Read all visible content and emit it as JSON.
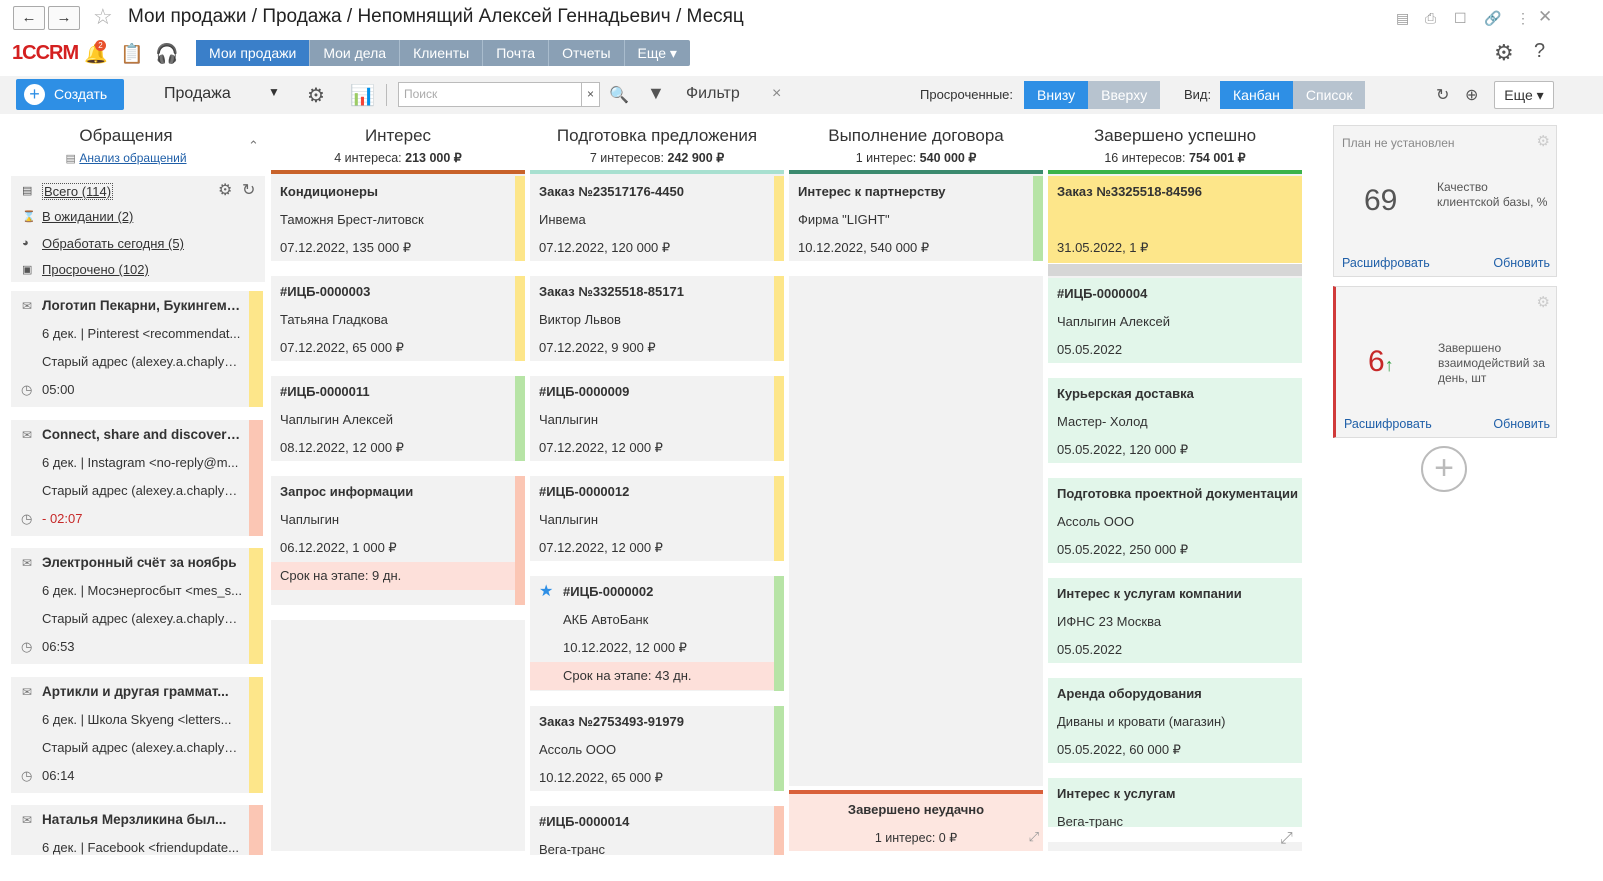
{
  "window": {
    "title": "Мои продажи / Продажа / Непомнящий Алексей Геннадьевич / Месяц"
  },
  "logo": "1ССRМ",
  "notifications_badge": "2",
  "menu": {
    "tabs": [
      "Мои продажи",
      "Мои дела",
      "Клиенты",
      "Почта",
      "Отчеты",
      "Еще ▾"
    ],
    "active": 0
  },
  "toolbar": {
    "create_label": "Создать",
    "sales_select": "Продажа",
    "search_placeholder": "Поиск",
    "filter_label": "Фильтр",
    "overdue_label": "Просроченные:",
    "overdue_options": [
      "Внизу",
      "Вверху"
    ],
    "view_label": "Вид:",
    "view_options": [
      "Канбан",
      "Список"
    ],
    "more_label": "Еще ▾"
  },
  "sidebar": {
    "title": "Обращения",
    "analysis_link": "Анализ обращений",
    "filters": [
      {
        "label": "Всего (114)",
        "icon": "inbox-icon"
      },
      {
        "label": "В ожидании (2)",
        "icon": "hourglass-icon"
      },
      {
        "label": "Обработать сегодня (5)",
        "icon": "pie-icon"
      },
      {
        "label": "Просрочено (102)",
        "icon": "warning-icon"
      }
    ],
    "appeals": [
      {
        "title": "Логотип Пекарни, Букингемс...",
        "from": "6 дек. | Pinterest <recommendat...",
        "address": "Старый адрес (alexey.a.chaplyg...",
        "time": "05:00",
        "color": "#fde68a"
      },
      {
        "title": "Connect, share and discover: ...",
        "from": "6 дек. | Instagram <no-reply@m...",
        "address": "Старый адрес (alexey.a.chaplyg...",
        "time": "- 02:07",
        "color": "#fbc6b4"
      },
      {
        "title": "Электронный счёт за ноябрь",
        "from": "6 дек. | Мосэнергосбыт <mes_s...",
        "address": "Старый адрес (alexey.a.chaplyg...",
        "time": "06:53",
        "color": "#fde68a"
      },
      {
        "title": "Артикли и другая граммат...",
        "from": "6 дек. | Школа Skyeng <letters...",
        "address": "Старый адрес (alexey.a.chaplyg...",
        "time": "06:14",
        "color": "#fde68a"
      },
      {
        "title": "Наталья Мерзликина был...",
        "from": "6 дек. | Facebook <friendupdate...",
        "address": "",
        "time": "",
        "color": "#fbc6b4"
      }
    ]
  },
  "columns": [
    {
      "title": "Интерес",
      "count": "4 интереса:",
      "sum": "213 000 ₽",
      "color": "#c8622a",
      "cards": [
        {
          "title": "Кондиционеры",
          "client": "Таможня Брест-литовск",
          "info": "07.12.2022, 135 000 ₽",
          "stripe": "#fde68a",
          "stage": ""
        },
        {
          "title": "#ИЦБ-0000003",
          "client": "Татьяна Гладкова",
          "info": "07.12.2022, 65 000 ₽",
          "stripe": "#fde68a",
          "stage": ""
        },
        {
          "title": "#ИЦБ-0000011",
          "client": "Чаплыгин Алексей",
          "info": "08.12.2022, 12 000 ₽",
          "stripe": "#b7e4a6",
          "stage": ""
        },
        {
          "title": "Запрос информации",
          "client": "Чаплыгин",
          "info": "06.12.2022, 1 000 ₽",
          "stripe": "#fbc6b4",
          "stage": "Срок на этапе: 9 дн."
        }
      ]
    },
    {
      "title": "Подготовка предложения",
      "count": "7 интересов:",
      "sum": "242 900 ₽",
      "color": "#a8e0d0",
      "cards": [
        {
          "title": "Заказ №23517176-4450",
          "client": "Инвема",
          "info": "07.12.2022, 120 000 ₽",
          "stripe": "#fde68a",
          "stage": ""
        },
        {
          "title": "Заказ №3325518-85171",
          "client": "Виктор Львов",
          "info": "07.12.2022, 9 900 ₽",
          "stripe": "#fde68a",
          "stage": ""
        },
        {
          "title": "#ИЦБ-0000009",
          "client": "Чаплыгин",
          "info": "07.12.2022, 12 000 ₽",
          "stripe": "#fde68a",
          "stage": ""
        },
        {
          "title": "#ИЦБ-0000012",
          "client": "Чаплыгин",
          "info": "07.12.2022, 12 000 ₽",
          "stripe": "#fde68a",
          "stage": ""
        },
        {
          "title": "#ИЦБ-0000002",
          "client": "АКБ АвтоБанк",
          "info": "10.12.2022, 12 000 ₽",
          "stripe": "#b7e4a6",
          "stage": "Срок на этапе: 43 дн.",
          "star": true
        },
        {
          "title": "Заказ №2753493-91979",
          "client": "Ассоль ООО",
          "info": "10.12.2022, 65 000 ₽",
          "stripe": "#b7e4a6",
          "stage": ""
        },
        {
          "title": "#ИЦБ-0000014",
          "client": "Вега-транс",
          "info": "",
          "stripe": "#fbc6b4",
          "stage": ""
        }
      ]
    },
    {
      "title": "Выполнение договора",
      "count": "1 интерес:",
      "sum": "540 000 ₽",
      "color": "#3b8a6e",
      "cards": [
        {
          "title": "Интерес к партнерству",
          "client": "Фирма \"LIGHT\"",
          "info": "10.12.2022, 540 000 ₽",
          "stripe": "#b7e4a6",
          "stage": ""
        }
      ]
    },
    {
      "title": "Завершено успешно",
      "count": "16 интересов:",
      "sum": "754 001 ₽",
      "color": "#3bb34a",
      "cards": [
        {
          "title": "Заказ №3325518-84596",
          "client": "",
          "info": "31.05.2022, 1 ₽",
          "stripe": "",
          "stage": ""
        },
        {
          "title": "#ИЦБ-0000004",
          "client": "Чаплыгин Алексей",
          "info": "05.05.2022",
          "stripe": "",
          "stage": ""
        },
        {
          "title": "Курьерская доставка",
          "client": "Мастер- Холод",
          "info": "05.05.2022, 120 000 ₽",
          "stripe": "",
          "stage": ""
        },
        {
          "title": "Подготовка проектной документации",
          "client": "Ассоль ООО",
          "info": "05.05.2022, 250 000 ₽",
          "stripe": "",
          "stage": ""
        },
        {
          "title": "Интерес к услугам компании",
          "client": "ИФНС 23 Москва",
          "info": "05.05.2022",
          "stripe": "",
          "stage": ""
        },
        {
          "title": "Аренда оборудования",
          "client": "Диваны и кровати (магазин)",
          "info": "05.05.2022, 60 000 ₽",
          "stripe": "",
          "stage": ""
        },
        {
          "title": "Интерес к услугам",
          "client": "Вега-транс",
          "info": "",
          "stripe": "",
          "stage": ""
        }
      ]
    }
  ],
  "failed": {
    "title": "Завершено неудачно",
    "count": "1 интерес: 0 ₽"
  },
  "widgets": [
    {
      "header": "План не установлен",
      "value": "69",
      "desc": "Качество клиентской базы, %",
      "link1": "Расшифровать",
      "link2": "Обновить"
    },
    {
      "header": "",
      "value": "6",
      "arrow": "↑",
      "desc": "Завершено взаимодействий за день, шт",
      "link1": "Расшифровать",
      "link2": "Обновить"
    }
  ]
}
